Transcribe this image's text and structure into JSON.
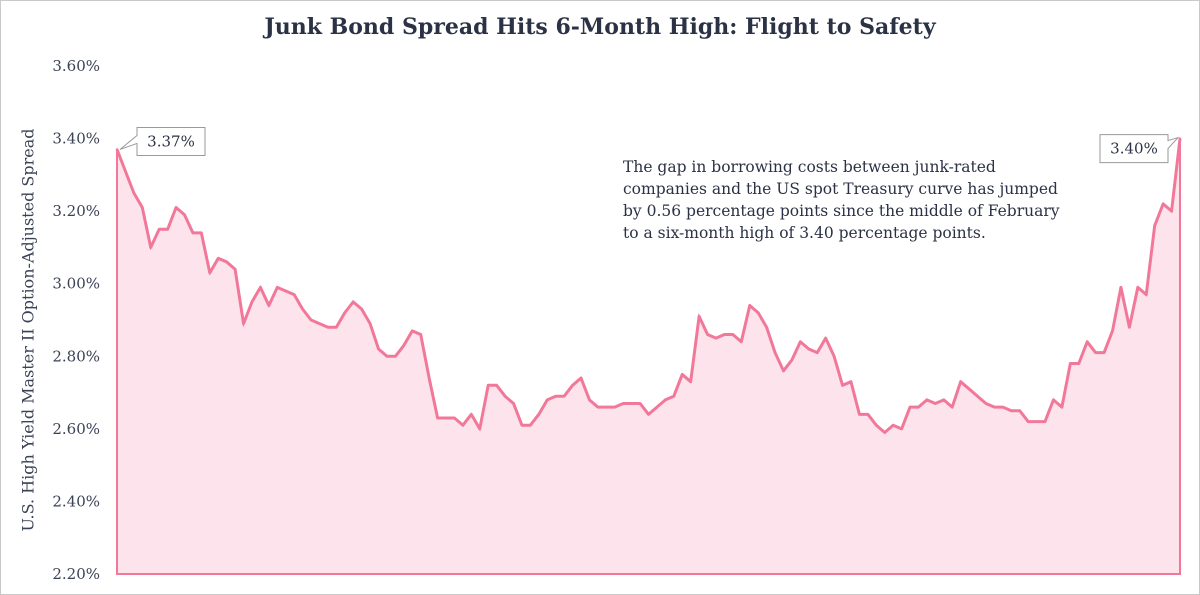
{
  "chart_data": {
    "type": "area",
    "title": "Junk Bond Spread Hits 6-Month High: Flight to Safety",
    "ylabel": "U.S. High Yield Master II Option-Adjusted Spread",
    "xlabel": "",
    "ylim": [
      2.2,
      3.6
    ],
    "yticks": [
      {
        "value": 3.6,
        "label": "3.60%"
      },
      {
        "value": 3.4,
        "label": "3.40%"
      },
      {
        "value": 3.2,
        "label": "3.20%"
      },
      {
        "value": 3.0,
        "label": "3.00%"
      },
      {
        "value": 2.8,
        "label": "2.80%"
      },
      {
        "value": 2.6,
        "label": "2.60%"
      },
      {
        "value": 2.4,
        "label": "2.40%"
      },
      {
        "value": 2.2,
        "label": "2.20%"
      }
    ],
    "grid": false,
    "colors": {
      "line": "#f2789a",
      "fill": "#fde4ec"
    },
    "values": [
      3.37,
      3.31,
      3.25,
      3.21,
      3.1,
      3.15,
      3.15,
      3.21,
      3.19,
      3.14,
      3.14,
      3.03,
      3.07,
      3.06,
      3.04,
      2.89,
      2.95,
      2.99,
      2.94,
      2.99,
      2.98,
      2.97,
      2.93,
      2.9,
      2.89,
      2.88,
      2.88,
      2.92,
      2.95,
      2.93,
      2.89,
      2.82,
      2.8,
      2.8,
      2.83,
      2.87,
      2.86,
      2.74,
      2.63,
      2.63,
      2.63,
      2.61,
      2.64,
      2.6,
      2.72,
      2.72,
      2.69,
      2.67,
      2.61,
      2.61,
      2.64,
      2.68,
      2.69,
      2.69,
      2.72,
      2.74,
      2.68,
      2.66,
      2.66,
      2.66,
      2.67,
      2.67,
      2.67,
      2.64,
      2.66,
      2.68,
      2.69,
      2.75,
      2.73,
      2.91,
      2.86,
      2.85,
      2.86,
      2.86,
      2.84,
      2.94,
      2.92,
      2.88,
      2.81,
      2.76,
      2.79,
      2.84,
      2.82,
      2.81,
      2.85,
      2.8,
      2.72,
      2.73,
      2.64,
      2.64,
      2.61,
      2.59,
      2.61,
      2.6,
      2.66,
      2.66,
      2.68,
      2.67,
      2.68,
      2.66,
      2.73,
      2.71,
      2.69,
      2.67,
      2.66,
      2.66,
      2.65,
      2.65,
      2.62,
      2.62,
      2.62,
      2.68,
      2.66,
      2.78,
      2.78,
      2.84,
      2.81,
      2.81,
      2.87,
      2.99,
      2.88,
      2.99,
      2.97,
      3.16,
      3.22,
      3.2,
      3.4
    ],
    "callouts": [
      {
        "label": "3.37%",
        "at": "start"
      },
      {
        "label": "3.40%",
        "at": "end"
      }
    ],
    "annotation": "The gap in borrowing costs between junk-rated companies and the US spot Treasury curve has jumped by 0.56 percentage points since the middle of February to a six-month high of 3.40 percentage points."
  }
}
